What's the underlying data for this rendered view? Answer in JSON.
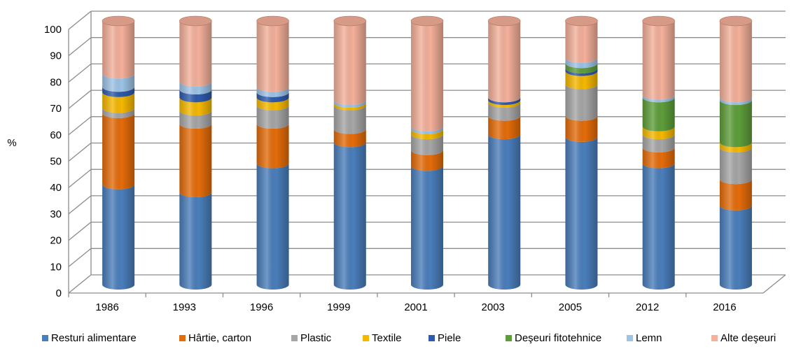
{
  "chart_data": {
    "type": "bar",
    "stacked": true,
    "style": "3d-cylinder",
    "ylabel": "%",
    "ylim": [
      0,
      100
    ],
    "ytick_step": 10,
    "grid": true,
    "legend_position": "bottom",
    "categories": [
      "1986",
      "1993",
      "1996",
      "1999",
      "2001",
      "2003",
      "2005",
      "2012",
      "2016"
    ],
    "series": [
      {
        "name": "Resturi alimentare",
        "color": "#4A7EBB",
        "values": [
          38,
          35,
          46,
          54,
          45,
          57,
          56,
          46,
          30
        ]
      },
      {
        "name": "Hârtie, carton",
        "color": "#E46C0A",
        "values": [
          27,
          26,
          15,
          5,
          6,
          7,
          8,
          6,
          10
        ]
      },
      {
        "name": "Plastic",
        "color": "#A6A6A6",
        "values": [
          2,
          5,
          7,
          9,
          6,
          5,
          12,
          5,
          12
        ]
      },
      {
        "name": "Textile",
        "color": "#F5B800",
        "values": [
          6,
          5,
          3,
          1,
          2,
          1,
          5,
          3,
          2
        ]
      },
      {
        "name": "Piele",
        "color": "#2E5AAC",
        "values": [
          2,
          3,
          2,
          0,
          0,
          1,
          1,
          0,
          0
        ]
      },
      {
        "name": "Deşeuri fitotehnice",
        "color": "#5E9E3A",
        "values": [
          0,
          0,
          0,
          0,
          0,
          0,
          2,
          11,
          16
        ]
      },
      {
        "name": "Lemn",
        "color": "#9DC3E6",
        "values": [
          5,
          3,
          2,
          1,
          1,
          0,
          2,
          1,
          1
        ]
      },
      {
        "name": "Alte deşeuri",
        "color": "#F4B09A",
        "values": [
          20,
          23,
          25,
          30,
          40,
          29,
          14,
          28,
          29
        ]
      }
    ]
  }
}
